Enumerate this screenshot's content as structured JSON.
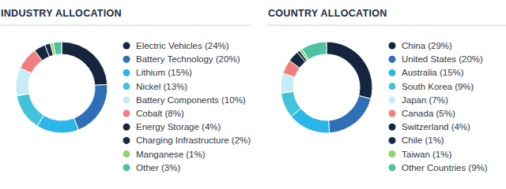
{
  "chart_data": [
    {
      "type": "pie",
      "title": "INDUSTRY ALLOCATION",
      "categories": [
        "Electric Vehicles (24%)",
        "Battery Technology (20%)",
        "Lithium (15%)",
        "Nickel (13%)",
        "Battery Components (10%)",
        "Cobalt (8%)",
        "Energy Storage (4%)",
        "Charging Infrastructure (2%)",
        "Manganese (1%)",
        "Other (3%)"
      ],
      "values": [
        24,
        20,
        15,
        13,
        10,
        8,
        4,
        2,
        1,
        3
      ],
      "colors": [
        "#14253d",
        "#2f6fb8",
        "#2bb5e8",
        "#41c3d9",
        "#c8ecf5",
        "#f08080",
        "#15283e",
        "#1b2a4a",
        "#8ed36b",
        "#4fc3a1"
      ]
    },
    {
      "type": "pie",
      "title": "COUNTRY ALLOCATION",
      "categories": [
        "China (29%)",
        "United States (20%)",
        "Australia (15%)",
        "South Korea (9%)",
        "Japan (7%)",
        "Canada (5%)",
        "Switzerland (4%)",
        "Chile (1%)",
        "Taiwan (1%)",
        "Other Countries (9%)"
      ],
      "values": [
        29,
        20,
        15,
        9,
        7,
        5,
        4,
        1,
        1,
        9
      ],
      "colors": [
        "#14253d",
        "#2f6fb8",
        "#2bb5e8",
        "#41c3d9",
        "#c8ecf5",
        "#f08080",
        "#15283e",
        "#1b2a4a",
        "#8ed36b",
        "#4fc3a1"
      ]
    }
  ]
}
